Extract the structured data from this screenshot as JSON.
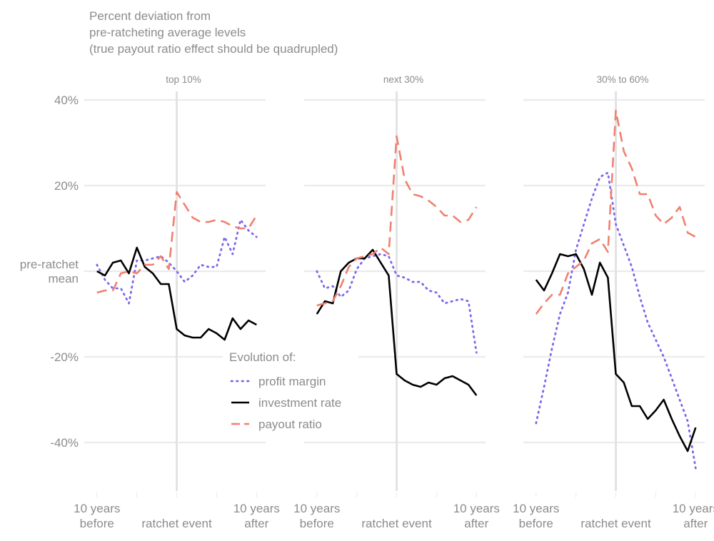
{
  "chart_data": {
    "type": "line",
    "title_lines": [
      "Percent deviation from",
      "pre-ratcheting average levels",
      "(true payout ratio effect should be quadrupled)"
    ],
    "y_unit": "percent",
    "ylim": [
      -51,
      40
    ],
    "y_ticks": [
      {
        "value": 40,
        "label": "40%"
      },
      {
        "value": 20,
        "label": "20%"
      },
      {
        "value": 0,
        "label": [
          "pre-ratchet",
          "mean"
        ]
      },
      {
        "value": -20,
        "label": "-20%"
      },
      {
        "value": -40,
        "label": "-40%"
      }
    ],
    "xlim": [
      -10,
      10
    ],
    "x_ticks": [
      {
        "value": -10,
        "label": [
          "10 years",
          "before"
        ]
      },
      {
        "value": 0,
        "label": [
          "ratchet event"
        ]
      },
      {
        "value": 10,
        "label": [
          "10 years",
          "after"
        ]
      }
    ],
    "event_marker_x": 0,
    "legend": {
      "title": "Evolution of:",
      "entries": [
        {
          "series": "profit margin",
          "label": "profit margin"
        },
        {
          "series": "investment rate",
          "label": "investment rate"
        },
        {
          "series": "payout ratio",
          "label": "payout ratio"
        }
      ]
    },
    "series_styles": {
      "profit margin": {
        "color": "#7b68ee",
        "dash": "dotted"
      },
      "investment rate": {
        "color": "#000000",
        "dash": "solid"
      },
      "payout ratio": {
        "color": "#f08070",
        "dash": "dashed"
      }
    },
    "panels": [
      {
        "title": "top 10%",
        "x": [
          -10,
          -9,
          -8,
          -7,
          -6,
          -5,
          -4,
          -3,
          -2,
          -1,
          0,
          1,
          2,
          3,
          4,
          5,
          6,
          7,
          8,
          9,
          10
        ],
        "series": [
          {
            "name": "profit margin",
            "values": [
              1.5,
              -2,
              -4,
              -4,
              -7.5,
              2.5,
              2.5,
              3,
              3.5,
              2,
              0,
              -2.5,
              -1,
              1.5,
              1,
              1,
              8,
              4,
              12,
              9.5,
              8
            ]
          },
          {
            "name": "investment rate",
            "values": [
              0,
              -1,
              2,
              2.5,
              -0.5,
              5.5,
              1,
              -0.5,
              -3,
              -3,
              -13.5,
              -15,
              -15.5,
              -15.5,
              -13.5,
              -14.5,
              -16,
              -11,
              -13.5,
              -11.5,
              -12.5
            ]
          },
          {
            "name": "payout ratio",
            "values": [
              -5,
              -4.5,
              -4.5,
              -0.5,
              0,
              -0.5,
              1.5,
              1.5,
              3.5,
              0.5,
              18.5,
              15.5,
              12.5,
              11.5,
              11.5,
              12,
              11.5,
              10.5,
              10,
              10,
              13
            ]
          }
        ]
      },
      {
        "title": "next 30%",
        "x": [
          -10,
          -9,
          -8,
          -7,
          -6,
          -5,
          -4,
          -3,
          -2,
          -1,
          0,
          1,
          2,
          3,
          4,
          5,
          6,
          7,
          8,
          9,
          10
        ],
        "series": [
          {
            "name": "profit margin",
            "values": [
              0,
              -4,
              -3.5,
              -6,
              -4.5,
              0.5,
              3,
              3.5,
              4,
              3.5,
              -1,
              -1.5,
              -2.5,
              -2.5,
              -4.5,
              -5,
              -7.5,
              -7,
              -6.5,
              -7,
              -19
            ]
          },
          {
            "name": "investment rate",
            "values": [
              -10,
              -7,
              -7.5,
              0,
              2,
              3,
              3,
              5,
              2,
              -1,
              -24,
              -25.5,
              -26.5,
              -27,
              -26,
              -26.5,
              -25,
              -24.5,
              -25.5,
              -26.5,
              -29
            ]
          },
          {
            "name": "payout ratio",
            "values": [
              -8,
              -7.5,
              -7,
              -3.5,
              1,
              3,
              3.5,
              4,
              5.5,
              4,
              31.5,
              21.5,
              18,
              17.5,
              16.5,
              15,
              13,
              13,
              11.5,
              12,
              15
            ]
          }
        ]
      },
      {
        "title": "30% to 60%",
        "x": [
          -10,
          -9,
          -8,
          -7,
          -6,
          -5,
          -4,
          -3,
          -2,
          -1,
          0,
          1,
          2,
          3,
          4,
          5,
          6,
          7,
          8,
          9,
          10
        ],
        "series": [
          {
            "name": "profit margin",
            "values": [
              -35.5,
              -27,
              -18,
              -10,
              -5,
              5,
              11,
              17,
              22,
              23,
              11,
              6,
              1,
              -6,
              -12,
              -16,
              -20,
              -25,
              -30,
              -35,
              -46
            ]
          },
          {
            "name": "investment rate",
            "values": [
              -2,
              -4.5,
              -0.5,
              4,
              3.5,
              4,
              0.5,
              -5.5,
              2,
              -1.5,
              -24,
              -26,
              -31.5,
              -31.5,
              -34.5,
              -32.5,
              -30,
              -34.5,
              -38.5,
              -42,
              -36.5
            ]
          },
          {
            "name": "payout ratio",
            "values": [
              -10,
              -7.5,
              -5.5,
              -5.5,
              -0.5,
              1,
              2.5,
              6.5,
              7.5,
              4.5,
              37.5,
              28,
              24,
              18,
              18,
              13,
              11,
              12.5,
              15,
              9,
              8
            ]
          }
        ]
      }
    ]
  }
}
